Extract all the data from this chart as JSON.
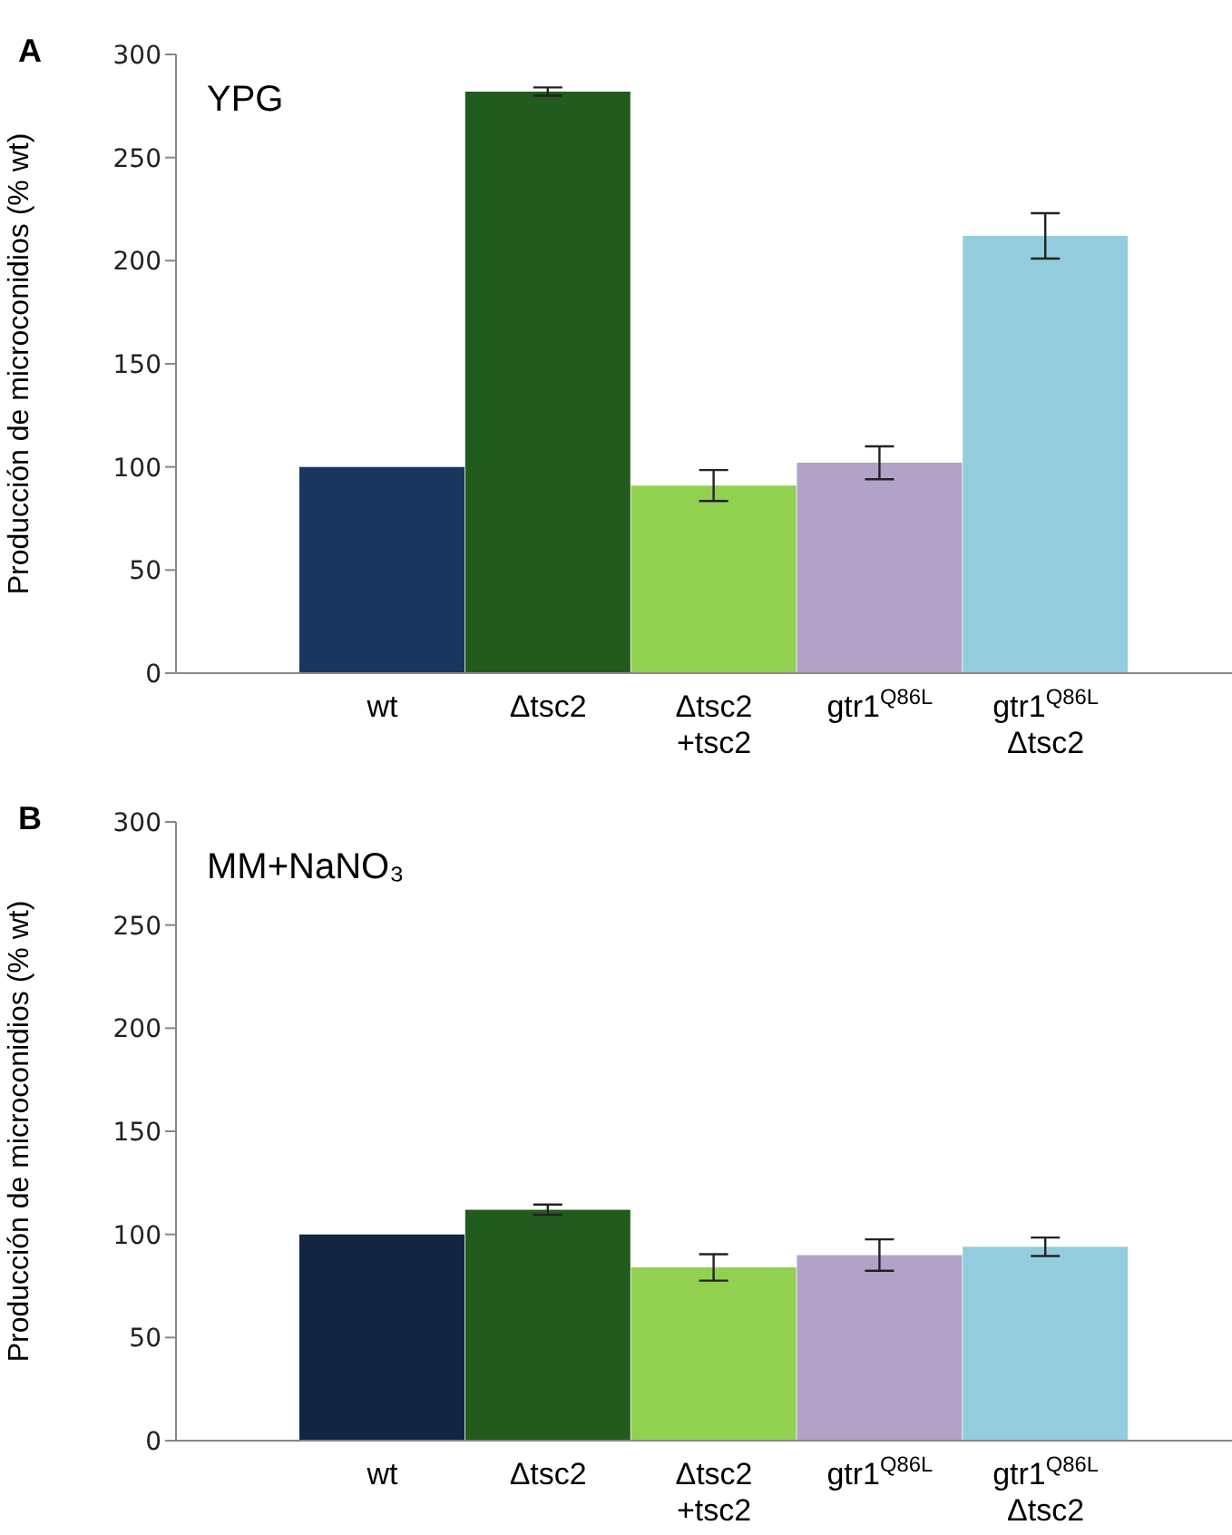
{
  "chart_data": [
    {
      "type": "bar",
      "title": "YPG",
      "ylabel": "Producción de microconidios (% wt)",
      "annotations": [
        "A"
      ],
      "categories": [
        "wt",
        "Δtsc2",
        "Δtsc2\n+tsc2",
        "gtr1$^{Q86L}$",
        "gtr1$^{Q86L}$\nΔtsc2"
      ],
      "values": [
        100,
        282,
        91,
        102,
        212
      ],
      "errors": [
        0,
        2,
        7.5,
        8,
        11
      ],
      "colors": [
        "#1a365e",
        "#215b1e",
        "#92d050",
        "#b2a2c7",
        "#93cddd"
      ],
      "ylim": [
        0,
        300
      ],
      "yticks": [
        0,
        50,
        100,
        150,
        200,
        250,
        300
      ]
    },
    {
      "type": "bar",
      "title": "MM+NaNO₃",
      "ylabel": "Producción de microconidios (% wt)",
      "annotations": [
        "B"
      ],
      "categories": [
        "wt",
        "Δtsc2",
        "Δtsc2\n+tsc2",
        "gtr1$^{Q86L}$",
        "gtr1$^{Q86L}$\nΔtsc2"
      ],
      "values": [
        100,
        112,
        84,
        90,
        94
      ],
      "errors": [
        0,
        2.5,
        6.4,
        7.6,
        4.5
      ],
      "colors": [
        "#132641",
        "#215b1e",
        "#92d050",
        "#b2a2c7",
        "#93cddd"
      ],
      "ylim": [
        0,
        300
      ],
      "yticks": [
        0,
        50,
        100,
        150,
        200,
        250,
        300
      ]
    }
  ]
}
